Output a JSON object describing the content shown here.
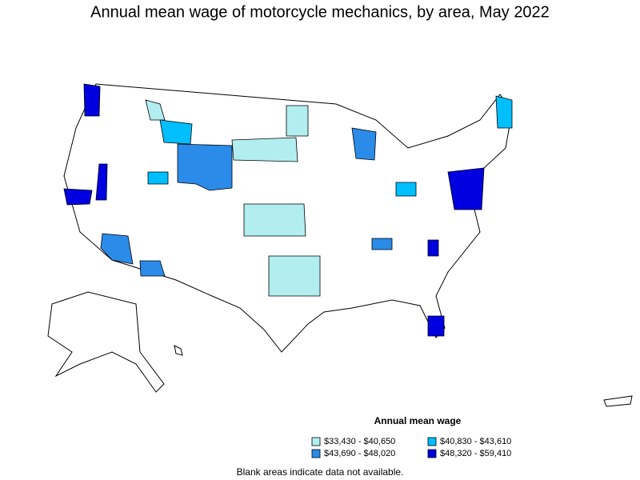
{
  "title": "Annual mean wage of motorcycle mechanics, by area, May 2022",
  "legend": {
    "title": "Annual mean wage",
    "items": [
      {
        "label": "$33,430 - $40,650",
        "color": "#b2eef0"
      },
      {
        "label": "$40,830 - $43,610",
        "color": "#00bfff"
      },
      {
        "label": "$43,690 - $48,020",
        "color": "#2b8be8"
      },
      {
        "label": "$48,320 - $59,410",
        "color": "#0000e0"
      }
    ]
  },
  "note": "Blank areas indicate data not available."
}
